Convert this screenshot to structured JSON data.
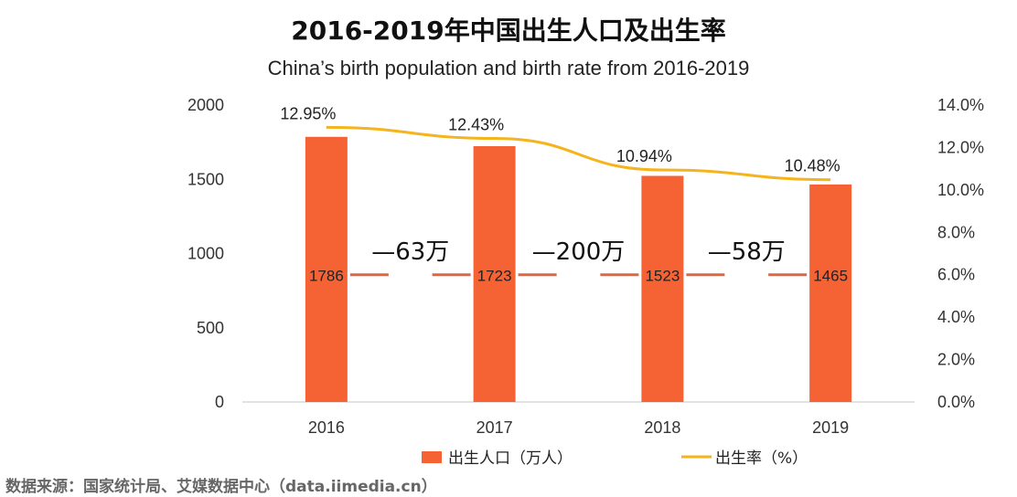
{
  "chart_data": {
    "type": "bar",
    "title": "2016-2019年中国出生人口及出生率",
    "subtitle": "China’s birth population and birth rate from 2016-2019",
    "categories": [
      "2016",
      "2017",
      "2018",
      "2019"
    ],
    "series": [
      {
        "name": "出生人口（万人）",
        "type": "bar",
        "axis": "left",
        "values": [
          1786,
          1723,
          1523,
          1465
        ],
        "color": "#F56335"
      },
      {
        "name": "出生率（%）",
        "type": "line",
        "axis": "right",
        "values": [
          12.95,
          12.43,
          10.94,
          10.48
        ],
        "color": "#F5B31C"
      }
    ],
    "bar_value_labels": [
      "1786",
      "1723",
      "1523",
      "1465"
    ],
    "line_value_labels": [
      "12.95%",
      "12.43%",
      "10.94%",
      "10.48%"
    ],
    "differences": [
      "—63万",
      "—200万",
      "—58万"
    ],
    "y_left": {
      "ticks": [
        "0",
        "500",
        "1000",
        "1500",
        "2000"
      ],
      "lim": [
        0,
        2000
      ]
    },
    "y_right": {
      "ticks": [
        "0.0%",
        "2.0%",
        "4.0%",
        "6.0%",
        "8.0%",
        "10.0%",
        "12.0%",
        "14.0%"
      ],
      "lim": [
        0,
        14
      ]
    },
    "grid": false,
    "legend_position": "bottom"
  },
  "source": "数据来源：国家统计局、艾媒数据中心（data.iimedia.cn）"
}
